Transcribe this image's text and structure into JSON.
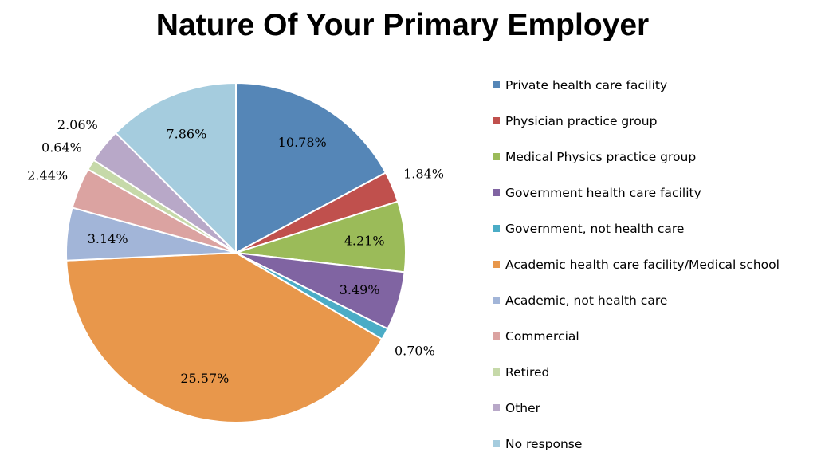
{
  "chart_data": {
    "type": "pie",
    "title": "Nature Of Your Primary Employer",
    "legend_position": "right",
    "start_angle_deg": 0,
    "direction": "clockwise",
    "slices": [
      {
        "label": "Private health care facility",
        "value": 10.78,
        "display": "10.78%",
        "color": "#5586B7"
      },
      {
        "label": "Physician practice group",
        "value": 1.84,
        "display": "1.84%",
        "color": "#C0504D"
      },
      {
        "label": "Medical Physics practice group",
        "value": 4.21,
        "display": "4.21%",
        "color": "#9BBB59"
      },
      {
        "label": "Government health care facility",
        "value": 3.49,
        "display": "3.49%",
        "color": "#8064A2"
      },
      {
        "label": "Government, not health care",
        "value": 0.7,
        "display": "0.70%",
        "color": "#4BACC6"
      },
      {
        "label": "Academic health care facility/Medical school",
        "value": 25.57,
        "display": "25.57%",
        "color": "#E8974B"
      },
      {
        "label": "Academic, not health care",
        "value": 3.14,
        "display": "3.14%",
        "color": "#A2B5D8"
      },
      {
        "label": "Commercial",
        "value": 2.44,
        "display": "2.44%",
        "color": "#DBA3A1"
      },
      {
        "label": "Retired",
        "value": 0.64,
        "display": "0.64%",
        "color": "#C6D9A9"
      },
      {
        "label": "Other",
        "value": 2.06,
        "display": "2.06%",
        "color": "#B8A8C8"
      },
      {
        "label": "No response",
        "value": 7.86,
        "display": "7.86%",
        "color": "#A5CCDE"
      }
    ]
  }
}
